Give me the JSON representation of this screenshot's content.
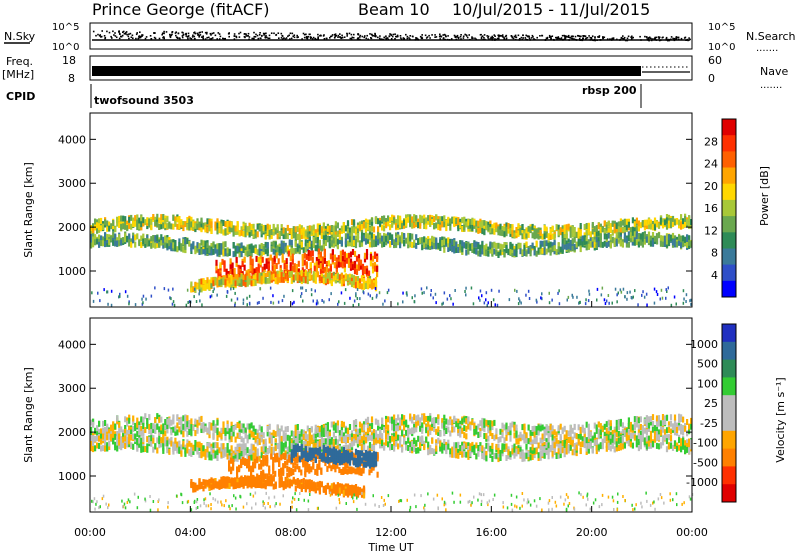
{
  "header": {
    "station": "Prince George (fitACF)",
    "beam": "Beam 10",
    "date_range": "10/Jul/2015 - 11/Jul/2015"
  },
  "panel_labels": {
    "nsky": "N.Sky",
    "nsearch": "N.Search",
    "nsky_ticks": [
      "10^5",
      "10^0"
    ],
    "freq": "Freq.",
    "freq_unit": "[MHz]",
    "freq_ticks": [
      "18",
      "8"
    ],
    "nave": "Nave",
    "nave_ticks": [
      "60",
      "0"
    ],
    "cpid": "CPID",
    "dotted_key": "......."
  },
  "cpid_segments": [
    {
      "label": "twofsound 3503",
      "start_hour": 0
    },
    {
      "label": "rbsp 200",
      "start_hour": 21.9
    }
  ],
  "colors": {
    "power_scale": [
      "#0000ff",
      "#2f4fc8",
      "#3a7a9a",
      "#2e8b57",
      "#6aa84f",
      "#a8c838",
      "#ffd700",
      "#ffa500",
      "#ff6000",
      "#ff3000",
      "#e00000"
    ],
    "velocity_scale": [
      "#2030c0",
      "#2f6a9a",
      "#2e8b57",
      "#33cc33",
      "#bdbdbd",
      "#bdbdbd",
      "#ffa500",
      "#ff8000",
      "#ff3000",
      "#e00000"
    ]
  },
  "chart_data": [
    {
      "type": "heatmap",
      "name_key": "power",
      "xlabel": "",
      "ylabel": "Slant Range [km]",
      "xlim": [
        0,
        24
      ],
      "ylim": [
        180,
        4600
      ],
      "yticks": [
        1000,
        2000,
        3000,
        4000
      ],
      "colorbar": {
        "label": "Power [dB]",
        "ticks": [
          4,
          8,
          12,
          16,
          20,
          24,
          28
        ],
        "range": [
          0,
          32
        ]
      },
      "bands": [
        {
          "x0": 0.0,
          "x1": 24.0,
          "center": 2000,
          "half_width": 120,
          "value": 16
        },
        {
          "x0": 0.0,
          "x1": 24.0,
          "center": 1600,
          "half_width": 120,
          "value": 12
        },
        {
          "x0": 5.0,
          "x1": 11.5,
          "center": 1100,
          "half_width": 250,
          "value": 26
        },
        {
          "x0": 4.0,
          "x1": 11.5,
          "center": 750,
          "half_width": 100,
          "value": 20
        }
      ]
    },
    {
      "type": "heatmap",
      "name_key": "velocity",
      "xlabel": "Time UT",
      "ylabel": "Slant Range [km]",
      "xlim": [
        0,
        24
      ],
      "ylim": [
        180,
        4600
      ],
      "yticks": [
        1000,
        2000,
        3000,
        4000
      ],
      "xticks": [
        "00:00",
        "04:00",
        "08:00",
        "12:00",
        "16:00",
        "20:00",
        "00:00"
      ],
      "colorbar": {
        "label": "Velocity [m s⁻¹]",
        "ticks": [
          1000,
          500,
          100,
          25,
          -25,
          -100,
          -500,
          -1000
        ],
        "range": [
          -1000,
          1000
        ]
      },
      "bands": [
        {
          "x0": 0.0,
          "x1": 24.0,
          "center": 2050,
          "half_width": 200,
          "value": 0
        },
        {
          "x0": 0.0,
          "x1": 24.0,
          "center": 1650,
          "half_width": 150,
          "value": 0
        },
        {
          "x0": 5.5,
          "x1": 11.5,
          "center": 1200,
          "half_width": 250,
          "value": -250
        },
        {
          "x0": 8.0,
          "x1": 11.5,
          "center": 1400,
          "half_width": 150,
          "value": 200
        },
        {
          "x0": 4.0,
          "x1": 11.0,
          "center": 750,
          "half_width": 100,
          "value": -150
        }
      ]
    }
  ]
}
